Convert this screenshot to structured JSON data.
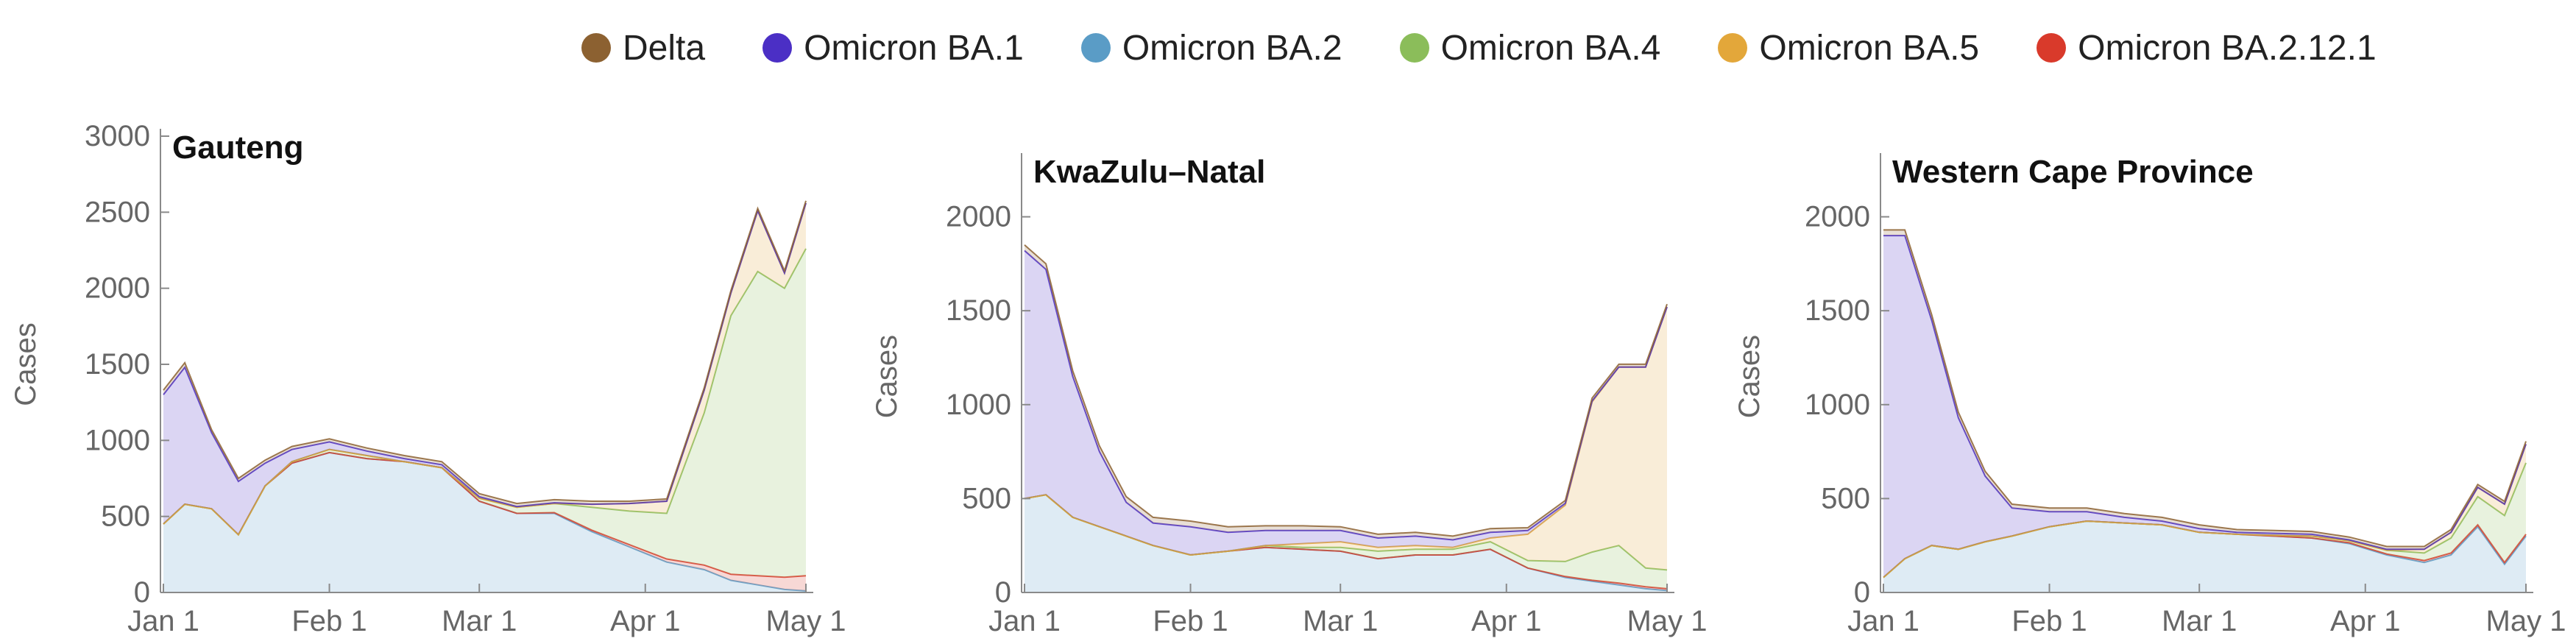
{
  "colors": {
    "Delta": "#8c6131",
    "Omicron BA.1": "#4b2fc5",
    "Omicron BA.2": "#5a9cc6",
    "Omicron BA.4": "#8bbd5a",
    "Omicron BA.5": "#e3a73a",
    "Omicron BA.2.12.1": "#d93a2b"
  },
  "legend": [
    {
      "label": "Delta",
      "color": "#8c6131"
    },
    {
      "label": "Omicron BA.1",
      "color": "#4b2fc5"
    },
    {
      "label": "Omicron BA.2",
      "color": "#5a9cc6"
    },
    {
      "label": "Omicron BA.4",
      "color": "#8bbd5a"
    },
    {
      "label": "Omicron BA.5",
      "color": "#e3a73a"
    },
    {
      "label": "Omicron BA.2.12.1",
      "color": "#d93a2b"
    }
  ],
  "chart_data": [
    {
      "type": "area",
      "title": "Gauteng",
      "ylabel": "Cases",
      "xlabel": "",
      "x_tick_labels": [
        "Jan 1",
        "Feb 1",
        "Mar 1",
        "Apr 1",
        "May 1"
      ],
      "x_tick_dates": [
        "2022-01-01",
        "2022-02-01",
        "2022-03-01",
        "2022-04-01",
        "2022-05-01"
      ],
      "ylim": [
        0,
        3000
      ],
      "y_ticks": [
        0,
        500,
        1000,
        1500,
        2000,
        2500,
        3000
      ],
      "stacked": true,
      "x": [
        "2022-01-01",
        "2022-01-05",
        "2022-01-10",
        "2022-01-15",
        "2022-01-20",
        "2022-01-25",
        "2022-02-01",
        "2022-02-08",
        "2022-02-15",
        "2022-02-22",
        "2022-03-01",
        "2022-03-08",
        "2022-03-15",
        "2022-03-22",
        "2022-03-29",
        "2022-04-05",
        "2022-04-12",
        "2022-04-17",
        "2022-04-22",
        "2022-04-27",
        "2022-05-01"
      ],
      "series": [
        {
          "name": "Omicron BA.2",
          "values": [
            450,
            580,
            550,
            380,
            700,
            850,
            920,
            880,
            860,
            820,
            600,
            520,
            520,
            400,
            300,
            200,
            150,
            80,
            50,
            20,
            10
          ]
        },
        {
          "name": "Omicron BA.2.12.1",
          "values": [
            0,
            0,
            0,
            0,
            0,
            0,
            0,
            0,
            0,
            0,
            0,
            0,
            5,
            10,
            15,
            20,
            30,
            40,
            60,
            80,
            100
          ]
        },
        {
          "name": "Omicron BA.4",
          "values": [
            0,
            0,
            0,
            0,
            0,
            10,
            20,
            20,
            0,
            0,
            20,
            40,
            60,
            150,
            220,
            300,
            1000,
            1700,
            2000,
            1900,
            2150
          ]
        },
        {
          "name": "Omicron BA.5",
          "values": [
            0,
            0,
            0,
            0,
            0,
            0,
            0,
            0,
            0,
            0,
            0,
            0,
            0,
            20,
            50,
            80,
            150,
            150,
            400,
            100,
            300
          ]
        },
        {
          "name": "Omicron BA.1",
          "values": [
            850,
            900,
            500,
            350,
            150,
            80,
            50,
            30,
            20,
            20,
            10,
            5,
            5,
            0,
            0,
            0,
            0,
            0,
            0,
            0,
            0
          ]
        },
        {
          "name": "Delta",
          "values": [
            30,
            30,
            20,
            20,
            20,
            20,
            20,
            20,
            20,
            20,
            20,
            20,
            20,
            20,
            15,
            15,
            15,
            15,
            15,
            15,
            15
          ]
        }
      ]
    },
    {
      "type": "area",
      "title": "KwaZulu–Natal",
      "ylabel": "Cases",
      "xlabel": "",
      "x_tick_labels": [
        "Jan 1",
        "Feb 1",
        "Mar 1",
        "Apr 1",
        "May 1"
      ],
      "x_tick_dates": [
        "2022-01-01",
        "2022-02-01",
        "2022-03-01",
        "2022-04-01",
        "2022-05-01"
      ],
      "ylim": [
        0,
        2300
      ],
      "y_ticks": [
        0,
        500,
        1000,
        1500,
        2000
      ],
      "stacked": true,
      "x": [
        "2022-01-01",
        "2022-01-05",
        "2022-01-10",
        "2022-01-15",
        "2022-01-20",
        "2022-01-25",
        "2022-02-01",
        "2022-02-08",
        "2022-02-15",
        "2022-02-22",
        "2022-03-01",
        "2022-03-08",
        "2022-03-15",
        "2022-03-22",
        "2022-03-29",
        "2022-04-05",
        "2022-04-12",
        "2022-04-17",
        "2022-04-22",
        "2022-04-27",
        "2022-05-01"
      ],
      "series": [
        {
          "name": "Omicron BA.2",
          "values": [
            500,
            520,
            400,
            350,
            300,
            250,
            200,
            220,
            240,
            230,
            220,
            180,
            200,
            200,
            230,
            130,
            80,
            60,
            40,
            20,
            10
          ]
        },
        {
          "name": "Omicron BA.2.12.1",
          "values": [
            0,
            0,
            0,
            0,
            0,
            0,
            0,
            0,
            0,
            0,
            0,
            0,
            0,
            0,
            0,
            0,
            5,
            5,
            10,
            10,
            10
          ]
        },
        {
          "name": "Omicron BA.4",
          "values": [
            0,
            0,
            0,
            0,
            0,
            0,
            0,
            0,
            10,
            10,
            20,
            40,
            30,
            30,
            40,
            40,
            80,
            150,
            200,
            100,
            100
          ]
        },
        {
          "name": "Omicron BA.5",
          "values": [
            0,
            0,
            0,
            0,
            0,
            0,
            0,
            0,
            0,
            20,
            30,
            20,
            20,
            10,
            20,
            140,
            300,
            800,
            950,
            1070,
            1400
          ]
        },
        {
          "name": "Omicron BA.1",
          "values": [
            1320,
            1200,
            750,
            400,
            180,
            120,
            150,
            100,
            80,
            70,
            60,
            50,
            50,
            40,
            30,
            20,
            10,
            5,
            0,
            0,
            0
          ]
        },
        {
          "name": "Delta",
          "values": [
            30,
            30,
            30,
            30,
            30,
            30,
            30,
            30,
            25,
            25,
            20,
            20,
            20,
            20,
            20,
            15,
            15,
            15,
            15,
            15,
            15
          ]
        }
      ]
    },
    {
      "type": "area",
      "title": "Western Cape Province",
      "ylabel": "Cases",
      "xlabel": "",
      "x_tick_labels": [
        "Jan 1",
        "Feb 1",
        "Mar 1",
        "Apr 1",
        "May 1"
      ],
      "x_tick_dates": [
        "2022-01-01",
        "2022-02-01",
        "2022-03-01",
        "2022-04-01",
        "2022-05-01"
      ],
      "ylim": [
        0,
        2300
      ],
      "y_ticks": [
        0,
        500,
        1000,
        1500,
        2000
      ],
      "stacked": true,
      "x": [
        "2022-01-01",
        "2022-01-05",
        "2022-01-10",
        "2022-01-15",
        "2022-01-20",
        "2022-01-25",
        "2022-02-01",
        "2022-02-08",
        "2022-02-15",
        "2022-02-22",
        "2022-03-01",
        "2022-03-08",
        "2022-03-15",
        "2022-03-22",
        "2022-03-29",
        "2022-04-05",
        "2022-04-12",
        "2022-04-17",
        "2022-04-22",
        "2022-04-27",
        "2022-05-01"
      ],
      "series": [
        {
          "name": "Omicron BA.2",
          "values": [
            80,
            180,
            250,
            230,
            270,
            300,
            350,
            380,
            370,
            360,
            320,
            310,
            300,
            290,
            260,
            200,
            160,
            200,
            350,
            150,
            300
          ]
        },
        {
          "name": "Omicron BA.2.12.1",
          "values": [
            0,
            0,
            0,
            0,
            0,
            0,
            0,
            0,
            0,
            0,
            0,
            0,
            0,
            0,
            5,
            5,
            10,
            10,
            10,
            10,
            10
          ]
        },
        {
          "name": "Omicron BA.4",
          "values": [
            0,
            0,
            0,
            0,
            0,
            0,
            0,
            0,
            0,
            0,
            0,
            0,
            5,
            10,
            10,
            20,
            40,
            80,
            150,
            250,
            380
          ]
        },
        {
          "name": "Omicron BA.5",
          "values": [
            0,
            0,
            0,
            0,
            0,
            0,
            0,
            0,
            0,
            0,
            0,
            0,
            0,
            0,
            0,
            0,
            20,
            30,
            50,
            60,
            100
          ]
        },
        {
          "name": "Omicron BA.1",
          "values": [
            1820,
            1720,
            1200,
            700,
            350,
            150,
            80,
            50,
            30,
            20,
            20,
            10,
            10,
            10,
            5,
            5,
            0,
            0,
            0,
            0,
            0
          ]
        },
        {
          "name": "Delta",
          "values": [
            30,
            30,
            30,
            30,
            25,
            20,
            20,
            20,
            20,
            20,
            20,
            15,
            15,
            15,
            15,
            15,
            15,
            15,
            15,
            15,
            15
          ]
        }
      ]
    }
  ]
}
